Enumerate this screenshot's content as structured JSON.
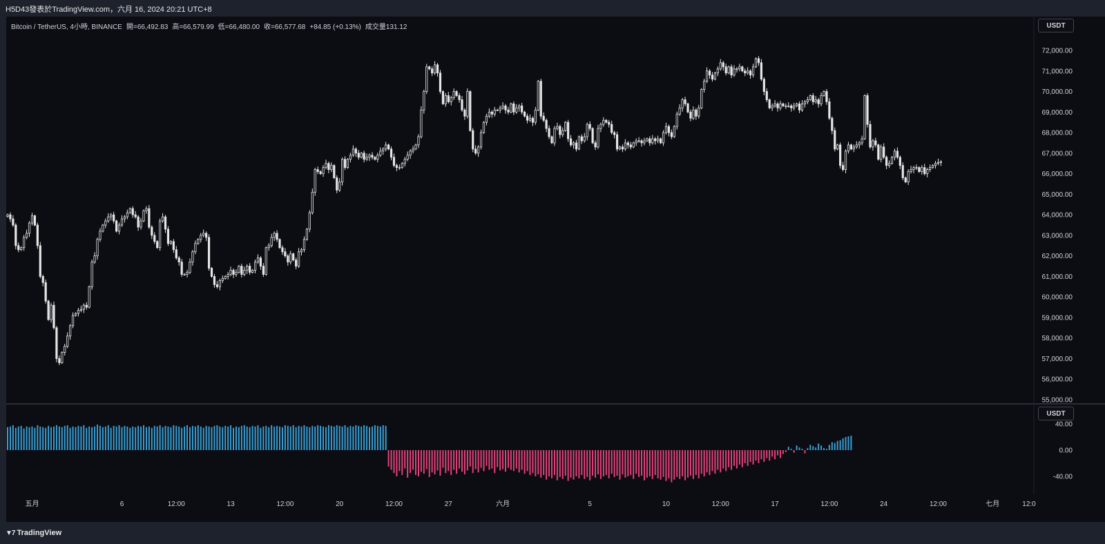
{
  "header": {
    "caption": "H5D43發表於TradingView.com，六月 16, 2024 20:21 UTC+8"
  },
  "legend": {
    "symbol": "Bitcoin / TetherUS, 4小時, BINANCE",
    "open_label": "開",
    "open": "66,492.83",
    "high_label": "高",
    "high": "66,579.99",
    "low_label": "低",
    "low": "66,480.00",
    "close_label": "收",
    "close": "66,577.68",
    "change": "+84.85 (+0.13%)",
    "volume_label": "成交量",
    "volume": "131.12"
  },
  "price_axis": {
    "currency": "USDT"
  },
  "indicator_axis": {
    "currency": "USDT"
  },
  "footer": {
    "brand": "TradingView"
  },
  "colors": {
    "background": "#0b0d12",
    "candle": "#e6e6e6",
    "wick": "#e6e6e6",
    "hist_positive": "#3a9fd6",
    "hist_negative": "#e4437a",
    "grid": "#1a1d26",
    "axis_text": "#d1d4dc"
  },
  "chart_data": [
    {
      "type": "candlestick",
      "title": "",
      "ylim": [
        55000,
        72500
      ],
      "y_ticks": [
        55000,
        56000,
        57000,
        58000,
        59000,
        60000,
        61000,
        62000,
        63000,
        64000,
        65000,
        66000,
        67000,
        68000,
        69000,
        70000,
        71000,
        72000
      ],
      "y_tick_labels": [
        "55,000.00",
        "56,000.00",
        "57,000.00",
        "58,000.00",
        "59,000.00",
        "60,000.00",
        "61,000.00",
        "62,000.00",
        "63,000.00",
        "64,000.00",
        "65,000.00",
        "66,000.00",
        "67,000.00",
        "68,000.00",
        "69,000.00",
        "70,000.00",
        "71,000.00",
        "72,000.00"
      ],
      "x_ticks": [
        "五月",
        "6",
        "12:00",
        "13",
        "12:00",
        "20",
        "12:00",
        "27",
        "六月",
        "5",
        "10",
        "12:00",
        "17",
        "12:00",
        "24",
        "12:00",
        "七月",
        "12:0"
      ],
      "x_tick_index": [
        9,
        42,
        62,
        82,
        102,
        122,
        142,
        162,
        182,
        214,
        242,
        262,
        282,
        302,
        322,
        342,
        362,
        380
      ],
      "grid": false,
      "series": [
        {
          "close": [
            64000,
            63800,
            63500,
            62500,
            62300,
            62400,
            62900,
            63100,
            63600,
            63950,
            63500,
            62500,
            61000,
            60700,
            59800,
            58900,
            59600,
            58500,
            57000,
            56800,
            57300,
            57600,
            58100,
            58600,
            59100,
            59200,
            59350,
            59400,
            59600,
            59500,
            60500,
            61700,
            62000,
            62800,
            63200,
            63500,
            63700,
            63900,
            64000,
            63700,
            63200,
            63500,
            63800,
            63900,
            64100,
            64300,
            64000,
            63900,
            63400,
            63700,
            64200,
            64300,
            63400,
            63000,
            62700,
            62400,
            63700,
            63900,
            63300,
            62600,
            62700,
            62300,
            61900,
            61700,
            61100,
            61100,
            61200,
            61700,
            62200,
            62600,
            62800,
            63000,
            63100,
            62900,
            61400,
            61000,
            60600,
            60500,
            60800,
            60900,
            61000,
            61100,
            61300,
            61100,
            61200,
            61500,
            61100,
            61300,
            61500,
            61200,
            61300,
            61700,
            61900,
            61500,
            61100,
            62400,
            62500,
            62900,
            63100,
            62800,
            62400,
            62200,
            62000,
            61700,
            62100,
            61800,
            61500,
            62200,
            62300,
            62800,
            63300,
            64100,
            65100,
            66200,
            66100,
            66000,
            66300,
            66500,
            66200,
            66400,
            65800,
            65200,
            65600,
            66700,
            66300,
            66700,
            66900,
            67200,
            67000,
            66800,
            67000,
            66700,
            66800,
            66900,
            66800,
            66700,
            66900,
            67100,
            67200,
            67400,
            67200,
            66800,
            66400,
            66300,
            66300,
            66500,
            66700,
            66900,
            67100,
            67200,
            67400,
            67800,
            69100,
            70000,
            71200,
            71100,
            70900,
            71300,
            70900,
            70000,
            69400,
            69800,
            69500,
            69700,
            70000,
            69800,
            69600,
            69100,
            68800,
            70000,
            68100,
            67200,
            67000,
            67300,
            68000,
            68500,
            68800,
            69000,
            68900,
            69100,
            69100,
            69200,
            69300,
            69100,
            69000,
            69400,
            69000,
            69200,
            69300,
            69000,
            68800,
            68600,
            68700,
            68500,
            69100,
            70500,
            68800,
            68600,
            68200,
            67800,
            67500,
            68200,
            68300,
            67900,
            68100,
            68500,
            67700,
            67400,
            67500,
            67200,
            67800,
            67600,
            67800,
            68400,
            68200,
            67500,
            67300,
            68200,
            68400,
            68600,
            68500,
            68400,
            68000,
            67900,
            67200,
            67300,
            67200,
            67500,
            67400,
            67300,
            67500,
            67600,
            67600,
            67500,
            67600,
            67700,
            67500,
            67700,
            67600,
            67700,
            67500,
            68000,
            68300,
            68000,
            67800,
            68300,
            68900,
            69200,
            69600,
            69400,
            69000,
            68700,
            69100,
            68800,
            69200,
            70100,
            70500,
            71000,
            70800,
            70600,
            70900,
            71100,
            71400,
            71200,
            70900,
            71200,
            70800,
            71100,
            71100,
            71200,
            71000,
            70900,
            71000,
            70800,
            71200,
            71600,
            71400,
            70600,
            70000,
            69600,
            69200,
            69300,
            69400,
            69200,
            69400,
            69300,
            69300,
            69300,
            69200,
            69300,
            69400,
            69100,
            69400,
            69500,
            69600,
            69800,
            69500,
            69600,
            69400,
            69800,
            70000,
            69500,
            68700,
            68100,
            67200,
            67400,
            66400,
            66200,
            67100,
            67400,
            67200,
            67300,
            67400,
            67500,
            67700,
            69800,
            68400,
            67300,
            67600,
            67400,
            66700,
            67300,
            66800,
            66400,
            66500,
            66800,
            67100,
            66800,
            66400,
            65800,
            65600,
            66100,
            66200,
            66300,
            66300,
            66100,
            66300,
            66000,
            66200,
            66300,
            66400,
            66500,
            66550,
            66580
          ]
        }
      ]
    },
    {
      "type": "bar",
      "title": "",
      "ylim": [
        -55,
        40
      ],
      "y_ticks": [
        40,
        0,
        -40
      ],
      "y_tick_labels": [
        "40.00",
        "0.00",
        "-40.00"
      ],
      "series": [
        {
          "values": [
            35,
            36,
            38,
            34,
            36,
            37,
            33,
            36,
            35,
            36,
            34,
            38,
            36,
            35,
            34,
            37,
            35,
            36,
            38,
            36,
            35,
            37,
            38,
            34,
            36,
            35,
            37,
            36,
            38,
            34,
            36,
            35,
            36,
            39,
            37,
            35,
            36,
            38,
            34,
            37,
            36,
            38,
            35,
            37,
            36,
            34,
            36,
            35,
            37,
            36,
            38,
            35,
            36,
            34,
            37,
            36,
            38,
            35,
            37,
            36,
            35,
            38,
            37,
            36,
            34,
            36,
            38,
            35,
            37,
            36,
            38,
            36,
            34,
            37,
            36,
            35,
            37,
            38,
            36,
            35,
            37,
            36,
            38,
            34,
            36,
            35,
            37,
            38,
            36,
            35,
            37,
            36,
            38,
            34,
            36,
            37,
            35,
            38,
            36,
            37,
            36,
            35,
            38,
            37,
            36,
            38,
            35,
            37,
            36,
            38,
            36,
            35,
            37,
            36,
            38,
            37,
            36,
            35,
            38,
            37,
            36,
            38,
            37,
            36,
            38,
            35,
            37,
            36,
            38,
            37,
            36,
            38,
            37,
            35,
            36,
            38,
            37,
            36,
            38,
            37,
            -25,
            -30,
            -35,
            -40,
            -32,
            -38,
            -28,
            -42,
            -35,
            -30,
            -38,
            -40,
            -33,
            -36,
            -29,
            -41,
            -34,
            -37,
            -31,
            -39,
            -27,
            -35,
            -32,
            -38,
            -30,
            -36,
            -28,
            -33,
            -37,
            -31,
            -25,
            -35,
            -29,
            -34,
            -27,
            -32,
            -24,
            -30,
            -28,
            -35,
            -26,
            -31,
            -29,
            -33,
            -27,
            -30,
            -32,
            -28,
            -34,
            -30,
            -36,
            -32,
            -38,
            -35,
            -40,
            -37,
            -42,
            -38,
            -45,
            -40,
            -43,
            -38,
            -46,
            -41,
            -44,
            -39,
            -47,
            -42,
            -45,
            -40,
            -43,
            -38,
            -44,
            -41,
            -46,
            -39,
            -42,
            -37,
            -44,
            -40,
            -38,
            -43,
            -36,
            -41,
            -39,
            -45,
            -37,
            -42,
            -40,
            -38,
            -44,
            -36,
            -41,
            -39,
            -46,
            -42,
            -40,
            -44,
            -38,
            -43,
            -45,
            -41,
            -47,
            -43,
            -49,
            -45,
            -41,
            -44,
            -40,
            -46,
            -42,
            -39,
            -44,
            -38,
            -43,
            -36,
            -40,
            -34,
            -38,
            -32,
            -36,
            -30,
            -34,
            -28,
            -32,
            -26,
            -30,
            -24,
            -28,
            -22,
            -26,
            -20,
            -24,
            -18,
            -22,
            -16,
            -20,
            -14,
            -18,
            -12,
            -16,
            -10,
            -14,
            -8,
            -12,
            -6,
            -3,
            5,
            2,
            -4,
            7,
            4,
            2,
            -5,
            3,
            8,
            6,
            4,
            10,
            7,
            3,
            2,
            8,
            12,
            11,
            14,
            15,
            18,
            20,
            21,
            22
          ]
        }
      ]
    }
  ]
}
